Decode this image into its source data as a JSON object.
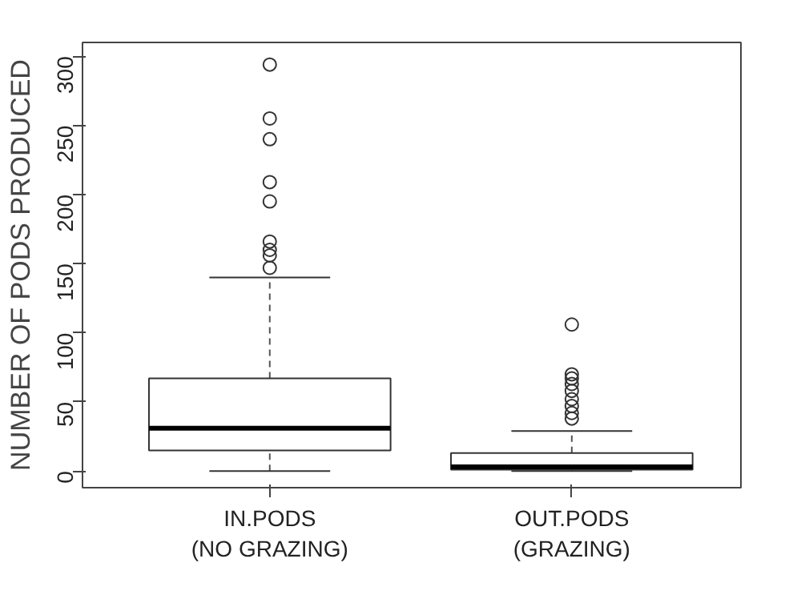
{
  "chart_data": {
    "type": "box",
    "ylabel": "NUMBER OF PODS PRODUCED",
    "categories": [
      "IN.PODS\n(NO GRAZING)",
      "OUT.PODS\n(GRAZING)"
    ],
    "boxes": [
      {
        "low": 0,
        "q1": 15,
        "median": 31,
        "q3": 67,
        "high": 140,
        "outliers": [
          294,
          255,
          240,
          209,
          195,
          166,
          160,
          156,
          147
        ]
      },
      {
        "low": 0,
        "q1": 1,
        "median": 3,
        "q3": 13,
        "high": 29,
        "outliers": [
          106,
          70,
          67,
          63,
          58,
          52,
          47,
          42,
          38
        ]
      }
    ],
    "ylim": [
      -12,
      310
    ],
    "yticks": [
      0,
      50,
      100,
      150,
      200,
      250,
      300
    ],
    "grid": false,
    "marker": "circle"
  }
}
